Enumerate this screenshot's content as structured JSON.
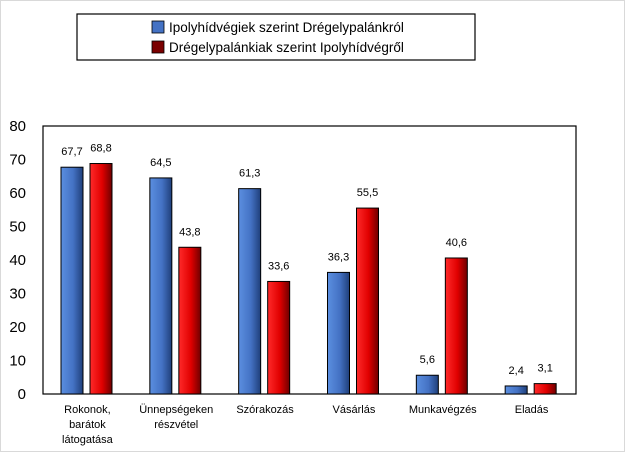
{
  "chart_data": {
    "type": "bar",
    "categories": [
      [
        "Rokonok,",
        "barátok",
        "látogatása"
      ],
      [
        "Ünnepségeken",
        "részvétel"
      ],
      [
        "Szórakozás"
      ],
      [
        "Vásárlás"
      ],
      [
        "Munkavégzés"
      ],
      [
        "Eladás"
      ]
    ],
    "series": [
      {
        "name": "Ipolyhídvégiek szerint Drégelypalánkról",
        "values": [
          67.7,
          64.5,
          61.3,
          36.3,
          5.6,
          2.4
        ],
        "labels": [
          "67,7",
          "64,5",
          "61,3",
          "36,3",
          "5,6",
          "2,4"
        ],
        "color": "#4472c4",
        "color_light": "#5b8fe0",
        "color_dark": "#1f3f7a"
      },
      {
        "name": "Drégelypalánkiak szerint Ipolyhídvégről",
        "values": [
          68.8,
          43.8,
          33.6,
          55.5,
          40.6,
          3.1
        ],
        "labels": [
          "68,8",
          "43,8",
          "33,6",
          "55,5",
          "40,6",
          "3,1"
        ],
        "color": "#e00000",
        "color_light": "#ff2a2a",
        "color_dark": "#6e0000"
      }
    ],
    "ylim": [
      0,
      80
    ],
    "yticks": [
      0,
      10,
      20,
      30,
      40,
      50,
      60,
      70,
      80
    ],
    "xlabel": "",
    "ylabel": "",
    "grid": false,
    "legend_position": "top-center"
  }
}
